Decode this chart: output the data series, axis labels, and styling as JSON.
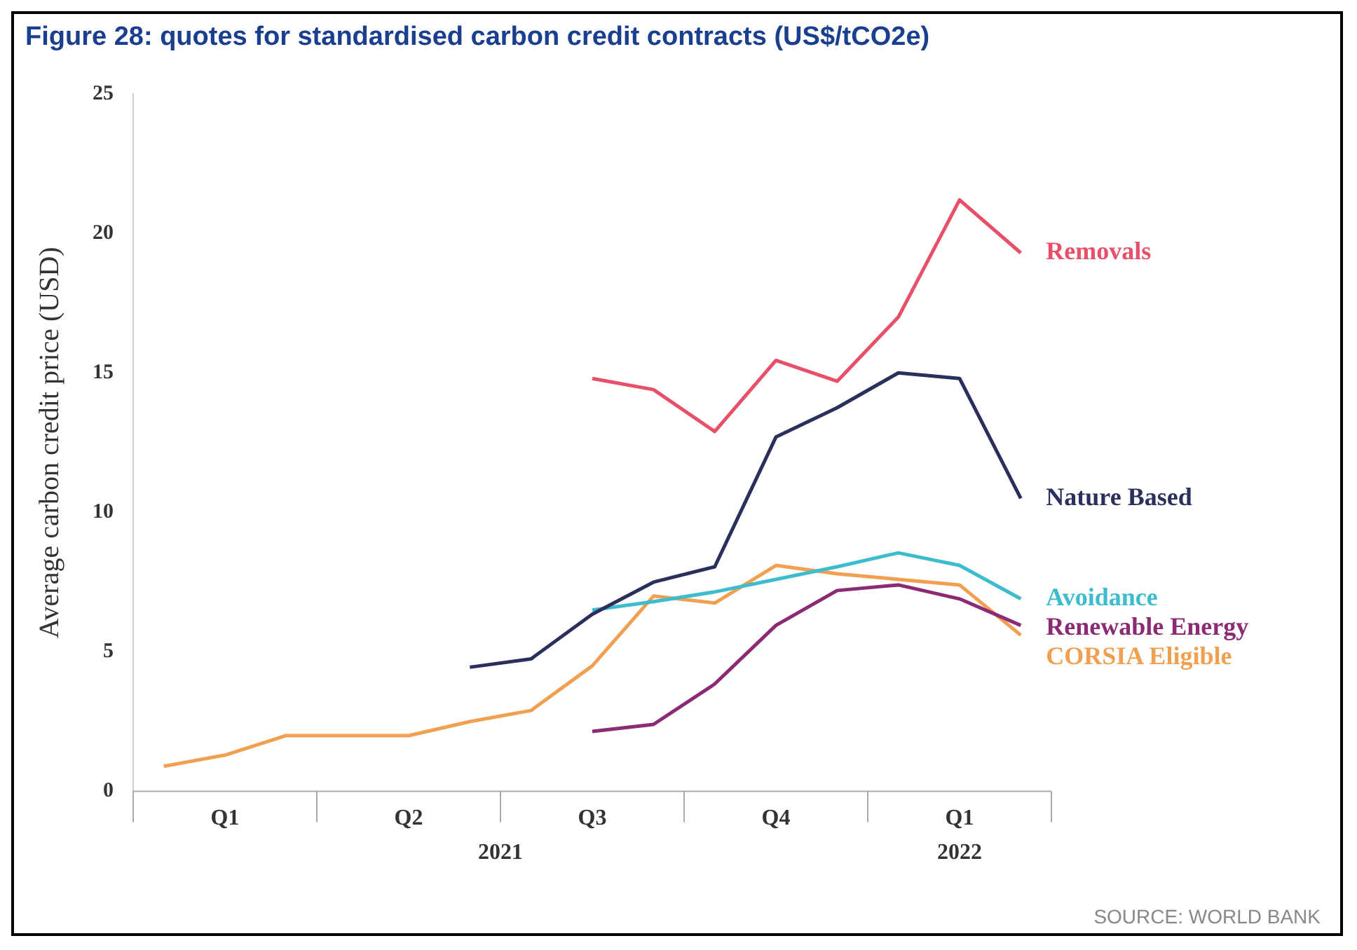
{
  "chart_data": {
    "type": "line",
    "title": "Figure 28: quotes for standardised carbon credit contracts (US$/tCO2e)",
    "ylabel": "Average carbon credit price (USD)",
    "categories": [
      null,
      "Q1",
      null,
      null,
      "Q2",
      null,
      null,
      "Q3",
      null,
      null,
      "Q4",
      null,
      null,
      "Q1",
      null
    ],
    "series": [
      {
        "name": "Removals",
        "color": "#e8506a",
        "values": [
          null,
          null,
          null,
          null,
          null,
          null,
          null,
          14.8,
          14.4,
          12.9,
          15.45,
          14.7,
          17.0,
          21.2,
          19.3
        ]
      },
      {
        "name": "Nature Based",
        "color": "#2b2f5b",
        "values": [
          null,
          null,
          null,
          null,
          null,
          4.45,
          4.75,
          6.35,
          7.5,
          8.05,
          12.7,
          13.75,
          15.0,
          14.8,
          10.5
        ]
      },
      {
        "name": "Avoidance",
        "color": "#3cbccc",
        "values": [
          null,
          null,
          null,
          null,
          null,
          null,
          null,
          6.5,
          6.8,
          7.15,
          7.6,
          8.05,
          8.55,
          8.1,
          6.9
        ]
      },
      {
        "name": "Renewable Energy",
        "color": "#8a2b74",
        "values": [
          null,
          null,
          null,
          null,
          null,
          null,
          null,
          2.15,
          2.4,
          3.85,
          5.95,
          7.2,
          7.4,
          6.9,
          5.95
        ]
      },
      {
        "name": "CORSIA Eligible",
        "color": "#f0a050",
        "values": [
          0.9,
          1.3,
          2.0,
          2.0,
          2.0,
          2.5,
          2.9,
          4.5,
          7.0,
          6.75,
          8.1,
          7.8,
          7.6,
          7.4,
          5.6
        ]
      }
    ],
    "ylim": [
      0,
      25
    ],
    "yticks": [
      0,
      5,
      10,
      15,
      20,
      25
    ],
    "grid": false,
    "legend": false,
    "marker": "none",
    "line_style": "solid",
    "annotations": [
      "2021",
      "2022",
      "SOURCE: WORLD BANK"
    ]
  }
}
